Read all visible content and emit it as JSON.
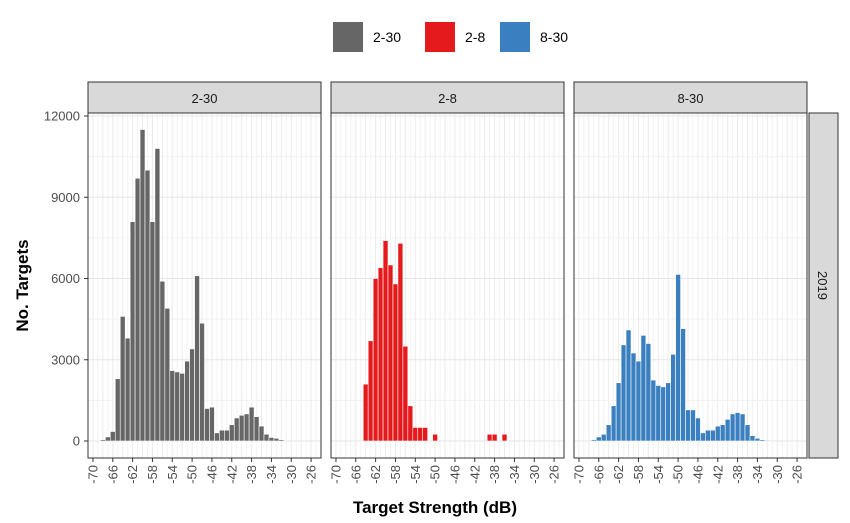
{
  "chart_data": {
    "type": "bar",
    "subtype": "faceted-histogram",
    "xlabel": "Target Strength (dB)",
    "ylabel": "No. Targets",
    "xlim": [
      -71,
      -24
    ],
    "ylim": [
      0,
      12000
    ],
    "x_ticks": [
      "-70",
      "-66",
      "-62",
      "-58",
      "-54",
      "-50",
      "-46",
      "-42",
      "-38",
      "-34",
      "-30",
      "-26"
    ],
    "y_ticks": [
      "0",
      "3000",
      "6000",
      "9000",
      "12000"
    ],
    "bin_width": 1,
    "grid": true,
    "legend_position": "top",
    "legend": [
      {
        "label": "2-30",
        "color": "#666666"
      },
      {
        "label": "2-8",
        "color": "#e41a1c"
      },
      {
        "label": "8-30",
        "color": "#3a7fbf"
      }
    ],
    "row_strip": "2019",
    "facets": [
      {
        "label": "2-30",
        "color": "#666666",
        "x": [
          -68,
          -67,
          -66,
          -65,
          -64,
          -63,
          -62,
          -61,
          -60,
          -59,
          -58,
          -57,
          -56,
          -55,
          -54,
          -53,
          -52,
          -51,
          -50,
          -49,
          -48,
          -47,
          -46,
          -45,
          -44,
          -43,
          -42,
          -41,
          -40,
          -39,
          -38,
          -37,
          -36,
          -35,
          -34,
          -33,
          -32
        ],
        "values": [
          50,
          150,
          350,
          2300,
          4600,
          3800,
          8100,
          9700,
          11500,
          10000,
          8100,
          10800,
          5900,
          4900,
          2600,
          2550,
          2500,
          2950,
          3400,
          6100,
          4350,
          1200,
          1250,
          300,
          400,
          400,
          600,
          850,
          950,
          1000,
          1250,
          900,
          550,
          250,
          130,
          100,
          50
        ]
      },
      {
        "label": "2-8",
        "color": "#e41a1c",
        "x": [
          -65,
          -64,
          -63,
          -62,
          -61,
          -60,
          -59,
          -58,
          -57,
          -56,
          -55,
          -54,
          -53,
          -52,
          -51,
          -50,
          -49,
          -40,
          -39,
          -38,
          -37,
          -36
        ],
        "values": [
          0,
          2100,
          3700,
          6000,
          6400,
          7400,
          6500,
          5800,
          7300,
          3500,
          1300,
          500,
          500,
          500,
          0,
          250,
          0,
          0,
          250,
          250,
          0,
          250
        ]
      },
      {
        "label": "8-30",
        "color": "#3a7fbf",
        "x": [
          -67,
          -66,
          -65,
          -64,
          -63,
          -62,
          -61,
          -60,
          -59,
          -58,
          -57,
          -56,
          -55,
          -54,
          -53,
          -52,
          -51,
          -50,
          -49,
          -48,
          -47,
          -46,
          -45,
          -44,
          -43,
          -42,
          -41,
          -40,
          -39,
          -38,
          -37,
          -36,
          -35,
          -34,
          -33,
          -32
        ],
        "values": [
          50,
          150,
          250,
          600,
          1300,
          2150,
          3550,
          4100,
          3250,
          2950,
          3900,
          3600,
          2250,
          2050,
          2000,
          2150,
          3200,
          6150,
          4150,
          1150,
          1150,
          850,
          300,
          400,
          400,
          550,
          600,
          800,
          1000,
          1050,
          1000,
          600,
          200,
          100,
          50,
          30
        ]
      }
    ]
  }
}
